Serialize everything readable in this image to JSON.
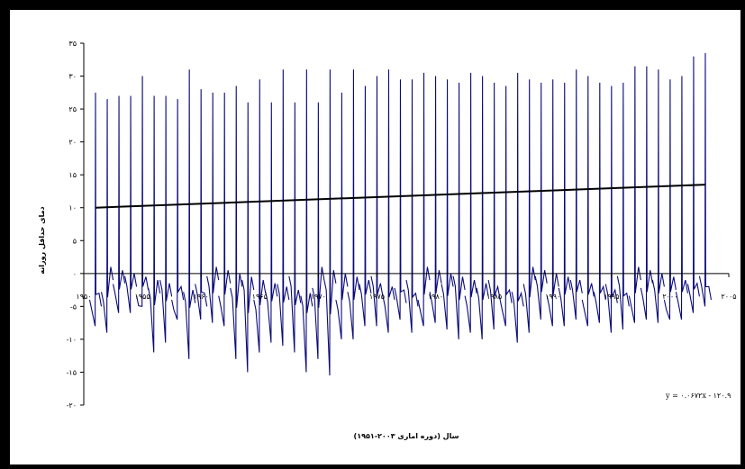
{
  "chart_data": {
    "type": "line",
    "xlabel": "سال (دوره اماری ۲۰۰۳-۱۹۵۱)",
    "ylabel": "دمای حداقل روزانه",
    "xlim": [
      1950,
      2005
    ],
    "ylim": [
      -20,
      35
    ],
    "x_ticks": [
      "۱۹۵۰",
      "۱۹۵۵",
      "۱۹۶۰",
      "۱۹۶۵",
      "۱۹۷۰",
      "۱۹۷۵",
      "۱۹۸۰",
      "۱۹۸۵",
      "۱۹۹۰",
      "۱۹۹۵",
      "۲۰۰۰",
      "۲۰۰۵"
    ],
    "x_tick_values": [
      1950,
      1955,
      1960,
      1965,
      1970,
      1975,
      1980,
      1985,
      1990,
      1995,
      2000,
      2005
    ],
    "y_ticks": [
      "۳۵",
      "۳۰",
      "۲۵",
      "۲۰",
      "۱۵",
      "۱۰",
      "۵",
      "۰",
      "-۵",
      "-۱۰",
      "-۱۵",
      "-۲۰"
    ],
    "y_tick_values": [
      35,
      30,
      25,
      20,
      15,
      10,
      5,
      0,
      -5,
      -10,
      -15,
      -20
    ],
    "grid": false,
    "legend": "none",
    "colors": {
      "series": "#0a0a7a",
      "trend": "#000000",
      "axis": "#000000"
    },
    "series": [
      {
        "years": [
          1951,
          1952,
          1953,
          1954,
          1955,
          1956,
          1957,
          1958,
          1959,
          1960,
          1961,
          1962,
          1963,
          1964,
          1965,
          1966,
          1967,
          1968,
          1969,
          1970,
          1971,
          1972,
          1973,
          1974,
          1975,
          1976,
          1977,
          1978,
          1979,
          1980,
          1981,
          1982,
          1983,
          1984,
          1985,
          1986,
          1987,
          1988,
          1989,
          1990,
          1991,
          1992,
          1993,
          1994,
          1995,
          1996,
          1997,
          1998,
          1999,
          2000,
          2001,
          2002,
          2003
        ],
        "annual_max": [
          27.5,
          26.5,
          27,
          27,
          30,
          27,
          27,
          26.5,
          31,
          28,
          27.5,
          27.5,
          28.5,
          26,
          29.5,
          26,
          31,
          26,
          31,
          26,
          31,
          27.5,
          31,
          28.5,
          30,
          31,
          29.5,
          29.5,
          30.5,
          30,
          29.5,
          29,
          30.5,
          30,
          29,
          28.5,
          30.5,
          29.5,
          29,
          29.5,
          29,
          31,
          30,
          29,
          28.5,
          29,
          31.5,
          31.5,
          31,
          29.5,
          30,
          33,
          33.5
        ],
        "annual_min": [
          -8,
          -9,
          -6,
          -6,
          -5,
          -12,
          -10.5,
          -7,
          -13,
          -7,
          -7.5,
          -8,
          -13,
          -15,
          -12,
          -10.5,
          -11,
          -12,
          -15,
          -13,
          -15.5,
          -10,
          -10,
          -8,
          -8,
          -9,
          -7,
          -9,
          -8,
          -7.5,
          -8.5,
          -10,
          -9,
          -10,
          -8.5,
          -8,
          -10.5,
          -9,
          -7,
          -8,
          -8,
          -7,
          -8,
          -7.5,
          -9,
          -8.5,
          -7.5,
          -7,
          -7.5,
          -7,
          -7,
          -6,
          -5
        ]
      }
    ],
    "trend": {
      "start": [
        1951,
        10
      ],
      "end": [
        2003,
        13.5
      ],
      "equation": "y = ۰.۰۶۷۲x - ۱۲۰.۹"
    }
  }
}
